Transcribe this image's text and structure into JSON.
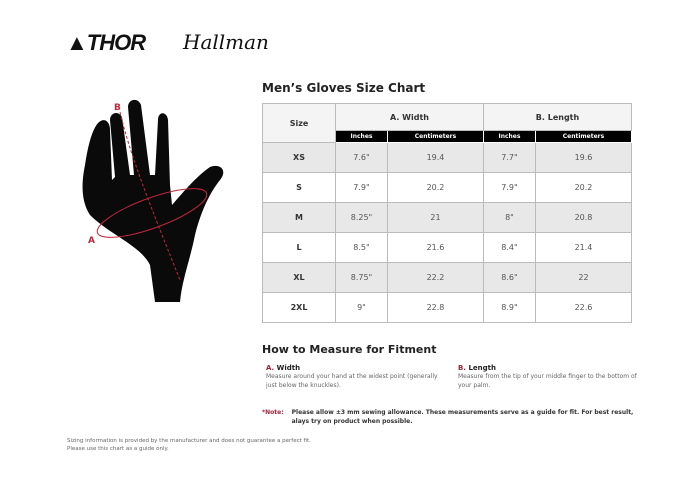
{
  "brands": {
    "thor": "THOR",
    "hallman": "Hallman"
  },
  "title": "Men’s Gloves Size Chart",
  "diagram": {
    "label_a": "A",
    "label_b": "B",
    "accent": "#c0283c"
  },
  "table": {
    "size_header": "Size",
    "group_headers": [
      "A. Width",
      "B. Length"
    ],
    "sub_headers": [
      "Inches",
      "Centimeters",
      "Inches",
      "Centimeters"
    ],
    "rows": [
      [
        "XS",
        "7.6\"",
        "19.4",
        "7.7\"",
        "19.6"
      ],
      [
        "S",
        "7.9\"",
        "20.2",
        "7.9\"",
        "20.2"
      ],
      [
        "M",
        "8.25\"",
        "21",
        "8\"",
        "20.8"
      ],
      [
        "L",
        "8.5\"",
        "21.6",
        "8.4\"",
        "21.4"
      ],
      [
        "XL",
        "8.75\"",
        "22.2",
        "8.6\"",
        "22"
      ],
      [
        "2XL",
        "9\"",
        "22.8",
        "8.9\"",
        "22.6"
      ]
    ]
  },
  "howto": {
    "title": "How to Measure for Fitment",
    "a_key": "A.",
    "a_label": "Width",
    "a_desc": "Measure around your hand at the widest point (generally just below the knuckles).",
    "b_key": "B.",
    "b_label": "Length",
    "b_desc": "Measure from the tip of your middle finger to the bottom of your palm."
  },
  "note": {
    "key": "*Note:",
    "text": "Please allow ±3 mm sewing allowance. These measurements serve as a guide for fit. For best result, alays try on product when possible."
  },
  "footer": [
    "Sizing information is provided by the manufacturer and does not guarantee a perfect fit.",
    "Please use this chart as a guide only."
  ]
}
